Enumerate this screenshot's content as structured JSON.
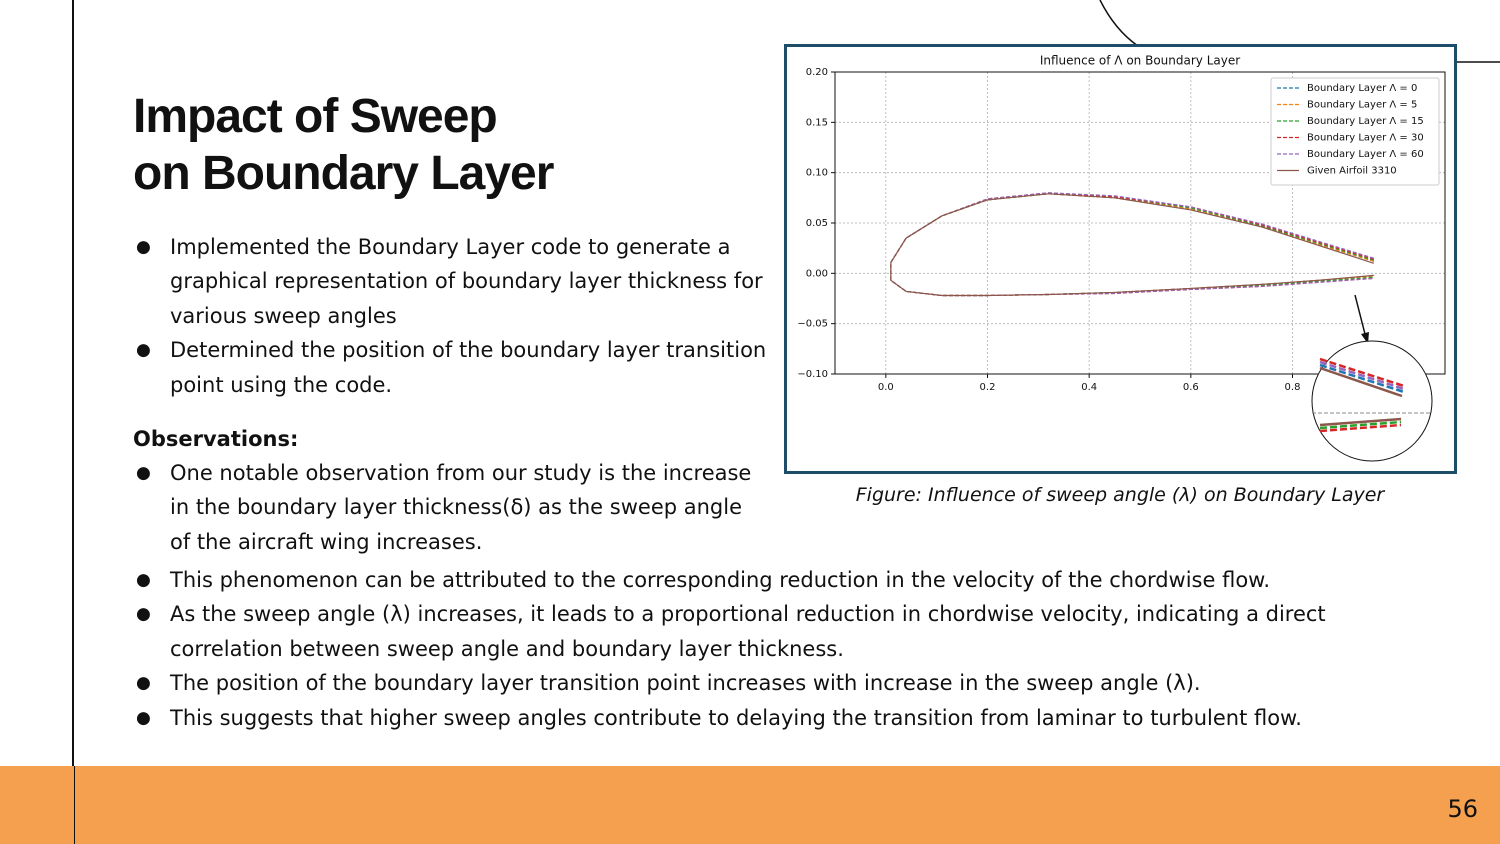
{
  "slide": {
    "title_lines": [
      "Impact of Sweep",
      "on Boundary Layer"
    ],
    "bullets": [
      "Implemented the Boundary Layer code to generate a graphical representation of boundary layer thickness for various sweep angles",
      "Determined the position of the boundary layer transition point using the code."
    ],
    "observations_heading": "Observations:",
    "observations": [
      "One notable observation from our study is the increase in the boundary layer thickness(δ) as the sweep angle of the aircraft wing increases.",
      "This phenomenon can be attributed to the corresponding reduction in the velocity of the chordwise flow.",
      "As the sweep angle (λ) increases, it leads to a proportional reduction in chordwise velocity, indicating a direct correlation between sweep angle and boundary layer thickness.",
      "The position of the boundary layer transition point increases with increase in the sweep angle (λ).",
      "This suggests that higher sweep angles contribute to delaying the transition from laminar to turbulent flow."
    ],
    "caption": "Figure: Influence of sweep angle (λ) on Boundary Layer",
    "page_number": "56"
  },
  "chart_data": {
    "type": "line",
    "title": "Influence of Λ on Boundary Layer",
    "x": [
      0.96,
      0.85,
      0.74,
      0.6,
      0.45,
      0.32,
      0.2,
      0.11,
      0.04,
      0.01,
      0.01,
      0.04,
      0.11,
      0.2,
      0.32,
      0.45,
      0.6,
      0.74,
      0.85,
      0.96
    ],
    "series": [
      {
        "name": "Boundary Layer Λ = 0",
        "color": "#1f77b4",
        "linestyle": "dashed",
        "values": [
          0.012,
          0.029,
          0.047,
          0.064,
          0.075,
          0.079,
          0.073,
          0.057,
          0.035,
          0.011,
          -0.007,
          -0.018,
          -0.022,
          -0.022,
          -0.021,
          -0.019,
          -0.015,
          -0.011,
          -0.007,
          -0.003
        ]
      },
      {
        "name": "Boundary Layer Λ = 5",
        "color": "#ff7f0e",
        "linestyle": "dashed",
        "values": [
          0.012,
          0.029,
          0.047,
          0.064,
          0.075,
          0.079,
          0.073,
          0.057,
          0.035,
          0.011,
          -0.007,
          -0.018,
          -0.022,
          -0.022,
          -0.021,
          -0.019,
          -0.015,
          -0.011,
          -0.007,
          -0.003
        ]
      },
      {
        "name": "Boundary Layer Λ = 15",
        "color": "#2ca02c",
        "linestyle": "dashed",
        "values": [
          0.013,
          0.03,
          0.047,
          0.065,
          0.076,
          0.079,
          0.073,
          0.057,
          0.035,
          0.011,
          -0.007,
          -0.018,
          -0.022,
          -0.022,
          -0.021,
          -0.019,
          -0.016,
          -0.012,
          -0.008,
          -0.004
        ]
      },
      {
        "name": "Boundary Layer Λ = 30",
        "color": "#d62728",
        "linestyle": "dashed",
        "values": [
          0.014,
          0.031,
          0.048,
          0.066,
          0.076,
          0.08,
          0.074,
          0.057,
          0.035,
          0.011,
          -0.007,
          -0.018,
          -0.022,
          -0.022,
          -0.021,
          -0.02,
          -0.016,
          -0.013,
          -0.009,
          -0.005
        ]
      },
      {
        "name": "Boundary Layer Λ = 60",
        "color": "#9467bd",
        "linestyle": "dashed",
        "values": [
          0.015,
          0.032,
          0.049,
          0.066,
          0.077,
          0.08,
          0.074,
          0.057,
          0.035,
          0.011,
          -0.007,
          -0.018,
          -0.022,
          -0.022,
          -0.021,
          -0.02,
          -0.016,
          -0.013,
          -0.009,
          -0.005
        ]
      },
      {
        "name": "Given Airfoil 3310",
        "color": "#8c564b",
        "linestyle": "solid",
        "values": [
          0.01,
          0.028,
          0.046,
          0.063,
          0.075,
          0.079,
          0.073,
          0.057,
          0.035,
          0.011,
          -0.007,
          -0.018,
          -0.022,
          -0.022,
          -0.021,
          -0.019,
          -0.015,
          -0.011,
          -0.007,
          -0.002
        ]
      }
    ],
    "xlim": [
      -0.1,
      1.1
    ],
    "ylim": [
      -0.1,
      0.2
    ],
    "xticks": [
      {
        "value": 0,
        "label": "0.0"
      },
      {
        "value": 0.2,
        "label": "0.2"
      },
      {
        "value": 0.4,
        "label": "0.4"
      },
      {
        "value": 0.6,
        "label": "0.6"
      },
      {
        "value": 0.8,
        "label": "0.8"
      }
    ],
    "yticks": [
      {
        "value": -0.1,
        "label": "−0.10"
      },
      {
        "value": -0.05,
        "label": "−0.05"
      },
      {
        "value": 0,
        "label": "0.00"
      },
      {
        "value": 0.05,
        "label": "0.05"
      },
      {
        "value": 0.1,
        "label": "0.10"
      },
      {
        "value": 0.15,
        "label": "0.15"
      },
      {
        "value": 0.2,
        "label": "0.20"
      }
    ],
    "grid": true,
    "legend": "upper right"
  }
}
